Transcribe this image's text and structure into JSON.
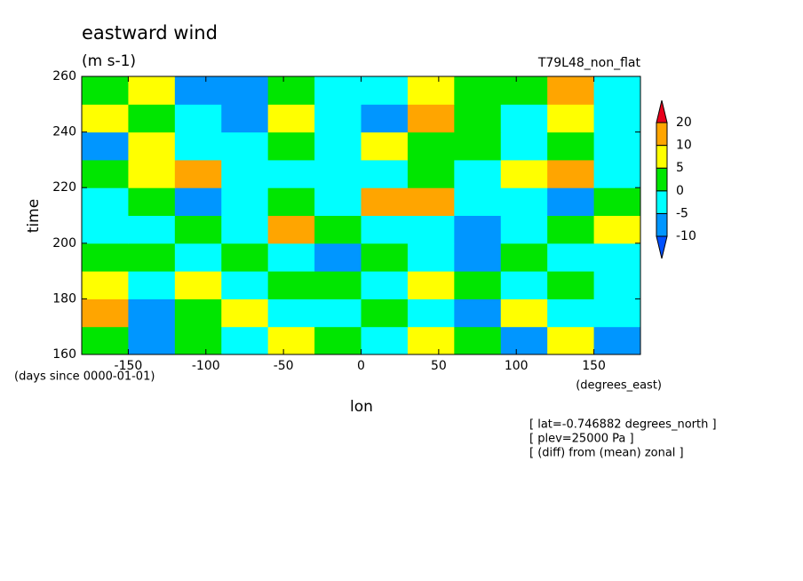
{
  "chart_data": {
    "type": "contour",
    "title": "eastward wind",
    "subtitle": "(m s-1)",
    "run_label": "T79L48_non_flat",
    "xlabel": "lon",
    "xunits": "(degrees_east)",
    "ylabel": "time",
    "yunits": "(days since 0000-01-01)",
    "notes": [
      "[ lat=-0.746882 degrees_north ]",
      "[ plev=25000 Pa ]",
      "[ (diff) from (mean) zonal ]"
    ],
    "xlim": [
      -180,
      180
    ],
    "xticks": [
      -150,
      -100,
      -50,
      0,
      50,
      100,
      150
    ],
    "ylim": [
      160,
      260
    ],
    "yticks": [
      160,
      180,
      200,
      220,
      240,
      260
    ],
    "levels": [
      -10,
      -5,
      0,
      5,
      10,
      20
    ],
    "colors": [
      "#0050ff",
      "#0096ff",
      "#00ffff",
      "#00e600",
      "#ffff00",
      "#ffa500",
      "#e8001c"
    ],
    "x": [
      -165,
      -135,
      -105,
      -75,
      -45,
      -15,
      15,
      45,
      75,
      105,
      135,
      165
    ],
    "y": [
      165,
      175,
      185,
      195,
      205,
      215,
      225,
      235,
      245,
      255
    ],
    "z": [
      [
        4,
        -6,
        3,
        -5,
        6,
        2,
        -3,
        5,
        3,
        -7,
        8,
        -10
      ],
      [
        10,
        -8,
        2,
        6,
        -3,
        -5,
        4,
        -2,
        -6,
        6,
        -3,
        -4
      ],
      [
        8,
        -3,
        6,
        -4,
        2,
        4,
        -5,
        6,
        2,
        -3,
        4,
        -2
      ],
      [
        0,
        2,
        -4,
        3,
        -3,
        -6,
        4,
        -4,
        -7,
        4,
        -3,
        -5
      ],
      [
        -4,
        -5,
        2,
        -3,
        14,
        4,
        -2,
        -1,
        -6,
        -3,
        0,
        8
      ],
      [
        -2,
        3,
        -6,
        -4,
        0,
        -3,
        12,
        10,
        -3,
        -2,
        -6,
        4
      ],
      [
        2,
        5,
        12,
        -4,
        -3,
        -2,
        -5,
        4,
        -4,
        8,
        10,
        -2
      ],
      [
        -6,
        8,
        -3,
        -5,
        3,
        -4,
        6,
        3,
        2,
        -5,
        2,
        -1
      ],
      [
        6,
        2,
        -3,
        -7,
        5,
        -2,
        -6,
        12,
        3,
        -4,
        8,
        -5
      ],
      [
        3,
        6,
        -8,
        -6,
        4,
        -2,
        -4,
        6,
        2,
        0,
        12,
        -3
      ]
    ]
  }
}
